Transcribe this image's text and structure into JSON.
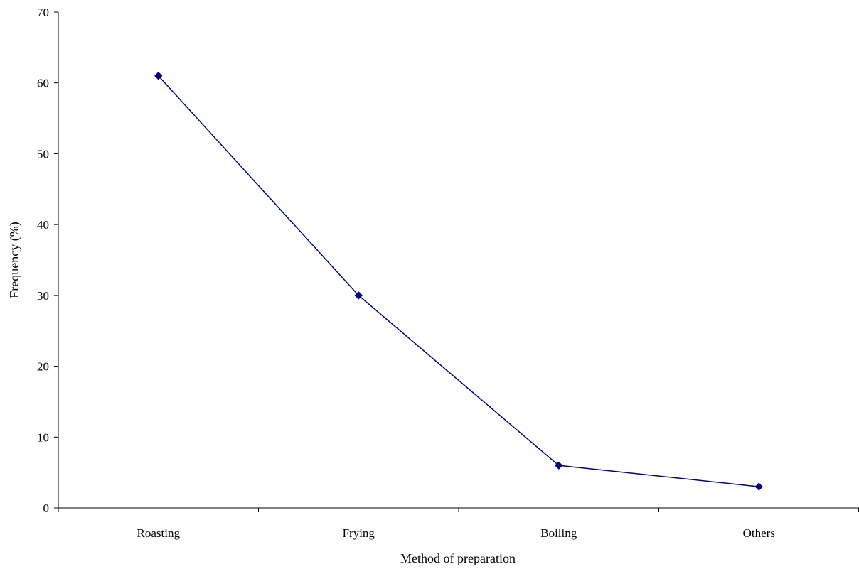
{
  "chart_data": {
    "type": "line",
    "xlabel": "Method of preparation",
    "ylabel": "Frequency (%)",
    "categories": [
      "Roasting",
      "Frying",
      "Boiling",
      "Others"
    ],
    "series": [
      {
        "values": [
          61,
          30,
          6,
          3
        ],
        "color": "#000080",
        "marker": "diamond"
      }
    ],
    "ylim": [
      0,
      70
    ],
    "yticks": [
      0,
      10,
      20,
      30,
      40,
      50,
      60,
      70
    ],
    "grid": false,
    "legend": "none"
  }
}
